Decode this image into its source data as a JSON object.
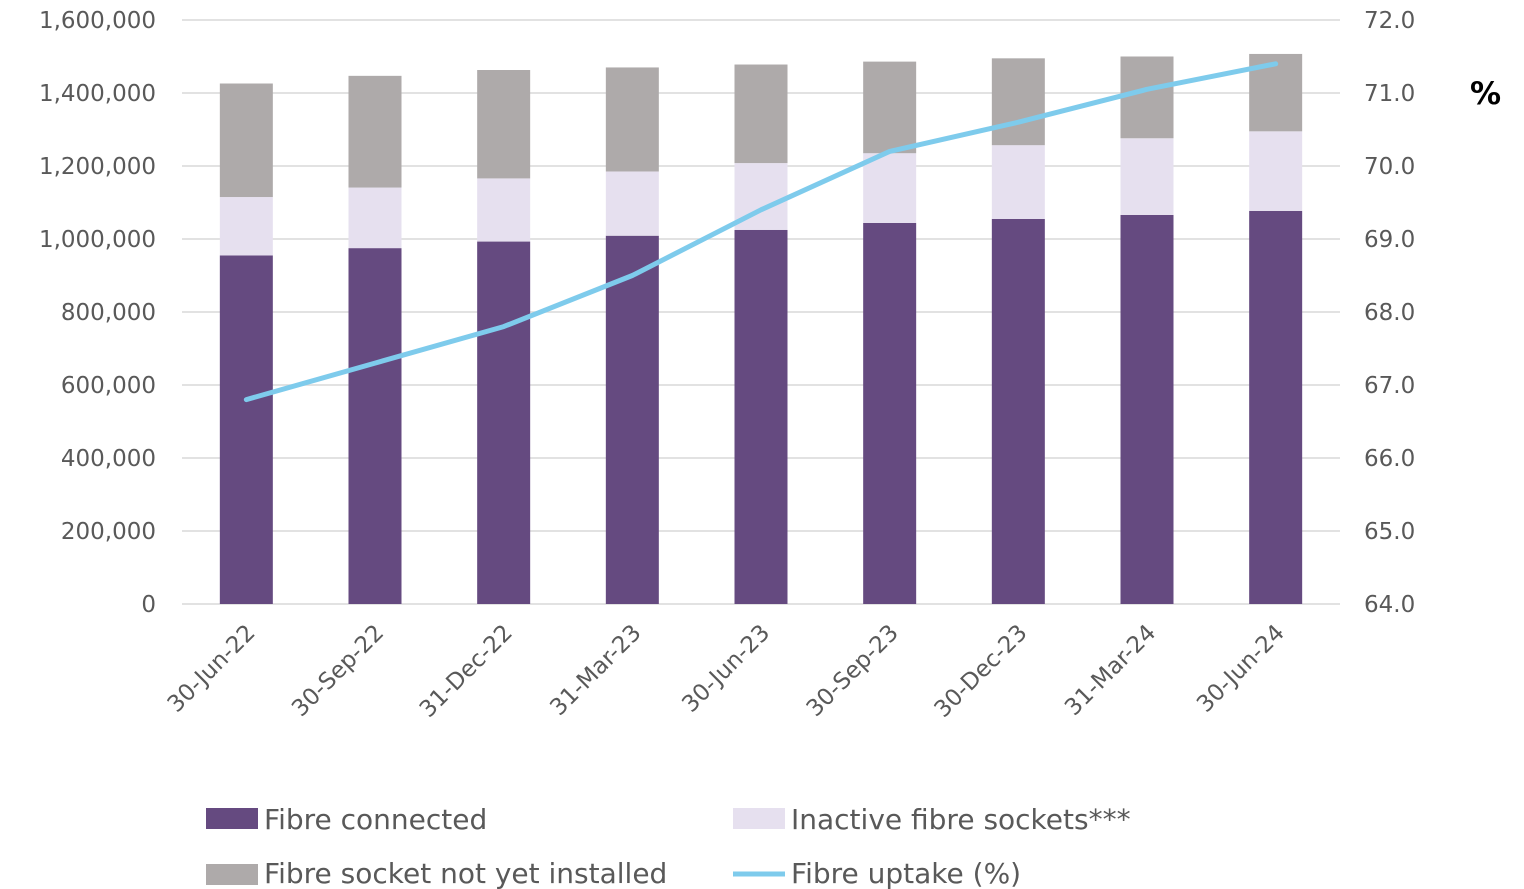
{
  "chart_data": {
    "type": "bar",
    "stacked": true,
    "categories": [
      "30-Jun-22",
      "30-Sep-22",
      "31-Dec-22",
      "31-Mar-23",
      "30-Jun-23",
      "30-Sep-23",
      "30-Dec-23",
      "31-Mar-24",
      "30-Jun-24"
    ],
    "series": [
      {
        "name": "Fibre connected",
        "type": "bar",
        "axis": "left",
        "color": "#654a80",
        "values": [
          955000,
          975000,
          993000,
          1009000,
          1025000,
          1044000,
          1055000,
          1066000,
          1077000
        ]
      },
      {
        "name": "Inactive fibre sockets***",
        "type": "bar",
        "axis": "left",
        "color": "#e6e0ef",
        "values": [
          160000,
          166000,
          173000,
          176000,
          183000,
          191000,
          202000,
          210000,
          218000
        ]
      },
      {
        "name": "Fibre socket not yet installed",
        "type": "bar",
        "axis": "left",
        "color": "#aeaaaa",
        "values": [
          311000,
          306000,
          297000,
          285000,
          270000,
          251000,
          238000,
          224000,
          212000
        ]
      },
      {
        "name": "Fibre uptake (%)",
        "type": "line",
        "axis": "right",
        "color": "#7ecbec",
        "values": [
          66.8,
          67.3,
          67.8,
          68.5,
          69.4,
          70.2,
          70.6,
          71.05,
          71.4
        ]
      }
    ],
    "y_left": {
      "ylim": [
        0,
        1600000
      ],
      "ticks": [
        "0",
        "200,000",
        "400,000",
        "600,000",
        "800,000",
        "1,000,000",
        "1,200,000",
        "1,400,000",
        "1,600,000"
      ]
    },
    "y_right": {
      "ylim": [
        64.0,
        72.0
      ],
      "ticks": [
        "64.0",
        "65.0",
        "66.0",
        "67.0",
        "68.0",
        "69.0",
        "70.0",
        "71.0",
        "72.0"
      ],
      "unit_label": "%"
    },
    "grid": true,
    "legend_position": "bottom"
  }
}
